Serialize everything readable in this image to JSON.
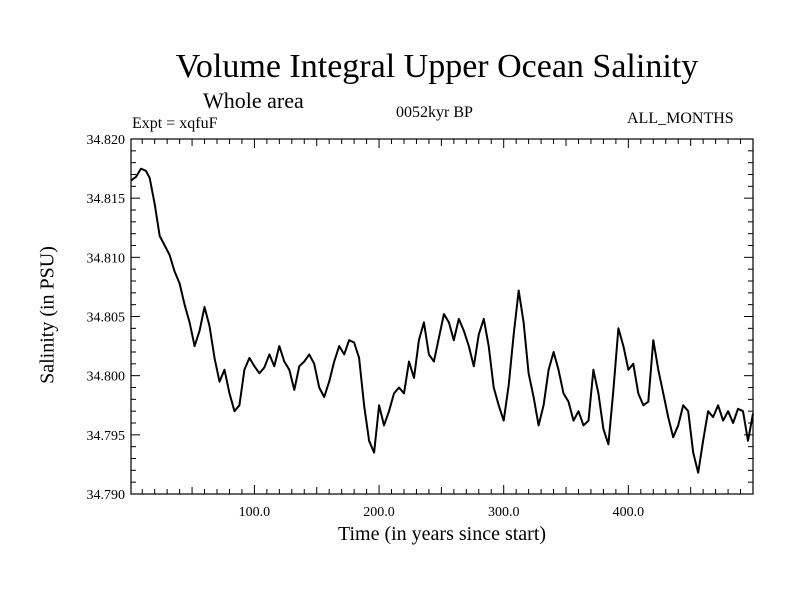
{
  "chart_data": {
    "type": "line",
    "title": "Volume Integral Upper Ocean Salinity",
    "subtitle": "Whole area",
    "expt_label": "Expt = xqfuF",
    "period_label": "0052kyr BP",
    "months_label": "ALL_MONTHS",
    "xlabel": "Time (in years since start)",
    "ylabel": "Salinity (in PSU)",
    "xlim": [
      1,
      500
    ],
    "ylim": [
      34.79,
      34.82
    ],
    "x_ticks": [
      100,
      200,
      300,
      400
    ],
    "x_tick_labels": [
      "100.0",
      "200.0",
      "300.0",
      "400.0"
    ],
    "y_ticks": [
      34.79,
      34.795,
      34.8,
      34.805,
      34.81,
      34.815,
      34.82
    ],
    "y_tick_labels": [
      "34.790",
      "34.795",
      "34.800",
      "34.805",
      "34.810",
      "34.815",
      "34.820"
    ],
    "line_color": "#000000",
    "series": [
      {
        "name": "salinity",
        "x": [
          1,
          5,
          9,
          13,
          16,
          20,
          24,
          28,
          32,
          36,
          40,
          44,
          48,
          52,
          56,
          60,
          64,
          68,
          72,
          76,
          80,
          84,
          88,
          92,
          96,
          100,
          104,
          108,
          112,
          116,
          120,
          124,
          128,
          132,
          136,
          140,
          144,
          148,
          152,
          156,
          160,
          164,
          168,
          172,
          176,
          180,
          184,
          188,
          192,
          196,
          200,
          204,
          208,
          212,
          216,
          220,
          224,
          228,
          232,
          236,
          240,
          244,
          248,
          252,
          256,
          260,
          264,
          268,
          272,
          276,
          280,
          284,
          288,
          292,
          296,
          300,
          304,
          308,
          312,
          316,
          320,
          324,
          328,
          332,
          336,
          340,
          344,
          348,
          352,
          356,
          360,
          364,
          368,
          372,
          376,
          380,
          384,
          388,
          392,
          396,
          400,
          404,
          408,
          412,
          416,
          420,
          424,
          428,
          432,
          436,
          440,
          444,
          448,
          452,
          456,
          460,
          464,
          468,
          472,
          476,
          480,
          484,
          488,
          492,
          496,
          500
        ],
        "values": [
          34.8165,
          34.8168,
          34.8175,
          34.8173,
          34.8167,
          34.8145,
          34.8118,
          34.811,
          34.8102,
          34.8088,
          34.8078,
          34.806,
          34.8045,
          34.8025,
          34.8038,
          34.8058,
          34.8042,
          34.8015,
          34.7995,
          34.8005,
          34.7985,
          34.797,
          34.7975,
          34.8005,
          34.8015,
          34.8008,
          34.8002,
          34.8007,
          34.8018,
          34.8008,
          34.8025,
          34.8012,
          34.8005,
          34.7988,
          34.8008,
          34.8012,
          34.8018,
          34.801,
          34.799,
          34.7982,
          34.7995,
          34.8012,
          34.8025,
          34.8018,
          34.803,
          34.8028,
          34.8015,
          34.7975,
          34.7945,
          34.7935,
          34.7975,
          34.7958,
          34.797,
          34.7985,
          34.799,
          34.7985,
          34.8012,
          34.7998,
          34.803,
          34.8045,
          34.8018,
          34.8012,
          34.8032,
          34.8052,
          34.8045,
          34.803,
          34.8048,
          34.8038,
          34.8025,
          34.8008,
          34.8035,
          34.8048,
          34.8025,
          34.799,
          34.7975,
          34.7962,
          34.7992,
          34.8035,
          34.8072,
          34.8045,
          34.8002,
          34.7982,
          34.7958,
          34.7975,
          34.8005,
          34.802,
          34.8005,
          34.7985,
          34.7978,
          34.7962,
          34.797,
          34.7958,
          34.7962,
          34.8005,
          34.7985,
          34.7955,
          34.7942,
          34.7988,
          34.804,
          34.8025,
          34.8005,
          34.801,
          34.7985,
          34.7975,
          34.7978,
          34.803,
          34.8005,
          34.7985,
          34.7965,
          34.7948,
          34.7958,
          34.7975,
          34.797,
          34.7935,
          34.7918,
          34.7945,
          34.797,
          34.7965,
          34.7975,
          34.7962,
          34.797,
          34.796,
          34.7972,
          34.797,
          34.7945,
          34.7968
        ]
      }
    ]
  }
}
